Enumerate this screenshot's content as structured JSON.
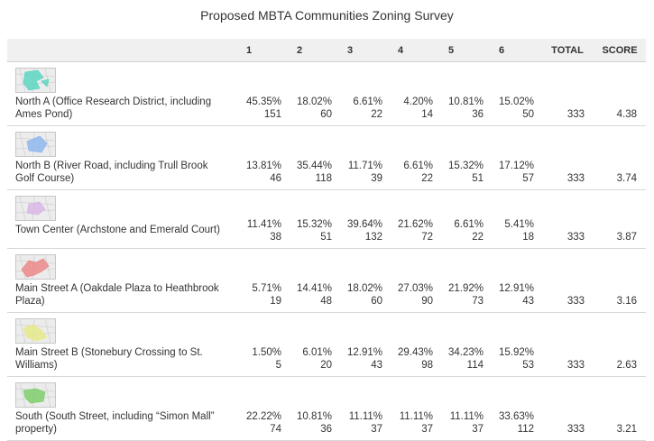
{
  "title": "Proposed MBTA Communities Zoning Survey",
  "columns": [
    "1",
    "2",
    "3",
    "4",
    "5",
    "6",
    "TOTAL",
    "SCORE"
  ],
  "rows": [
    {
      "name": "North A (Office Research District, including Ames Pond)",
      "map_color": "#5ed6c2",
      "pcts": [
        "45.35%",
        "18.02%",
        "6.61%",
        "4.20%",
        "10.81%",
        "15.02%"
      ],
      "counts": [
        "151",
        "60",
        "22",
        "14",
        "36",
        "50"
      ],
      "total": "333",
      "score": "4.38"
    },
    {
      "name": "North B (River Road, including Trull Brook Golf Course)",
      "map_color": "#8fb8f0",
      "pcts": [
        "13.81%",
        "35.44%",
        "11.71%",
        "6.61%",
        "15.32%",
        "17.12%"
      ],
      "counts": [
        "46",
        "118",
        "39",
        "22",
        "51",
        "57"
      ],
      "total": "333",
      "score": "3.74"
    },
    {
      "name": "Town Center (Archstone and Emerald Court)",
      "map_color": "#d9b8e6",
      "pcts": [
        "11.41%",
        "15.32%",
        "39.64%",
        "21.62%",
        "6.61%",
        "5.41%"
      ],
      "counts": [
        "38",
        "51",
        "132",
        "72",
        "22",
        "18"
      ],
      "total": "333",
      "score": "3.87"
    },
    {
      "name": "Main Street A (Oakdale Plaza to Heathbrook Plaza)",
      "map_color": "#ec8a8a",
      "pcts": [
        "5.71%",
        "14.41%",
        "18.02%",
        "27.03%",
        "21.92%",
        "12.91%"
      ],
      "counts": [
        "19",
        "48",
        "60",
        "90",
        "73",
        "43"
      ],
      "total": "333",
      "score": "3.16"
    },
    {
      "name": "Main Street B (Stonebury Crossing to St. Williams)",
      "map_color": "#e6ea8a",
      "pcts": [
        "1.50%",
        "6.01%",
        "12.91%",
        "29.43%",
        "34.23%",
        "15.92%"
      ],
      "counts": [
        "5",
        "20",
        "43",
        "98",
        "114",
        "53"
      ],
      "total": "333",
      "score": "2.63"
    },
    {
      "name": "South (South Street, including “Simon Mall” property)",
      "map_color": "#7fcf6e",
      "pcts": [
        "22.22%",
        "10.81%",
        "11.11%",
        "11.11%",
        "11.11%",
        "33.63%"
      ],
      "counts": [
        "74",
        "36",
        "37",
        "37",
        "37",
        "112"
      ],
      "total": "333",
      "score": "3.21"
    }
  ]
}
